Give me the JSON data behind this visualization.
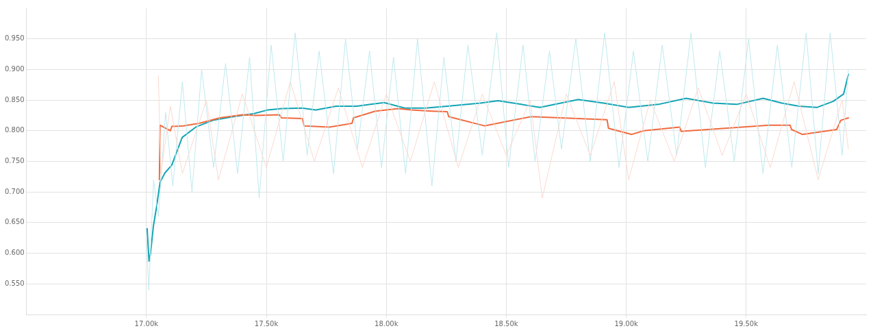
{
  "chart_data": {
    "type": "line",
    "xlim": [
      16500,
      20000
    ],
    "ylim": [
      0.5,
      1.0
    ],
    "xticks": [
      {
        "value": 17000,
        "label": "17.00k"
      },
      {
        "value": 17500,
        "label": "17.50k"
      },
      {
        "value": 18000,
        "label": "18.00k"
      },
      {
        "value": 18500,
        "label": "18.50k"
      },
      {
        "value": 19000,
        "label": "19.00k"
      },
      {
        "value": 19500,
        "label": "19.50k"
      }
    ],
    "yticks": [
      {
        "value": 0.55,
        "label": "0.550"
      },
      {
        "value": 0.6,
        "label": "0.600"
      },
      {
        "value": 0.65,
        "label": "0.650"
      },
      {
        "value": 0.7,
        "label": "0.700"
      },
      {
        "value": 0.75,
        "label": "0.750"
      },
      {
        "value": 0.8,
        "label": "0.800"
      },
      {
        "value": 0.85,
        "label": "0.850"
      },
      {
        "value": 0.9,
        "label": "0.900"
      },
      {
        "value": 0.95,
        "label": "0.950"
      }
    ],
    "grid": true,
    "legend": false,
    "line_style": "solid",
    "series": [
      {
        "color": "#fcd9cf",
        "x": [
          17050,
          17060,
          17100,
          17150,
          17250,
          17300,
          17400,
          17500,
          17600,
          17700,
          17800,
          17900,
          18000,
          18100,
          18200,
          18300,
          18400,
          18500,
          18600,
          18650,
          18750,
          18850,
          18950,
          19010,
          19100,
          19200,
          19300,
          19400,
          19500,
          19600,
          19700,
          19800,
          19900,
          19926
        ],
        "values": [
          0.89,
          0.73,
          0.84,
          0.73,
          0.85,
          0.72,
          0.86,
          0.74,
          0.88,
          0.75,
          0.87,
          0.74,
          0.86,
          0.75,
          0.88,
          0.74,
          0.86,
          0.76,
          0.85,
          0.69,
          0.86,
          0.76,
          0.88,
          0.72,
          0.85,
          0.75,
          0.87,
          0.76,
          0.86,
          0.74,
          0.88,
          0.72,
          0.85,
          0.77
        ]
      },
      {
        "color": "#bfe9ef",
        "x": [
          17000,
          17010,
          17030,
          17050,
          17080,
          17110,
          17150,
          17190,
          17230,
          17280,
          17330,
          17380,
          17430,
          17470,
          17520,
          17570,
          17620,
          17670,
          17720,
          17780,
          17830,
          17880,
          17930,
          17980,
          18030,
          18080,
          18130,
          18190,
          18240,
          18290,
          18340,
          18400,
          18460,
          18510,
          18570,
          18620,
          18680,
          18730,
          18790,
          18850,
          18910,
          18970,
          19030,
          19090,
          19150,
          19210,
          19270,
          19330,
          19390,
          19450,
          19510,
          19570,
          19630,
          19690,
          19750,
          19800,
          19850,
          19900,
          19926
        ],
        "values": [
          0.63,
          0.54,
          0.72,
          0.66,
          0.83,
          0.71,
          0.88,
          0.7,
          0.9,
          0.74,
          0.91,
          0.73,
          0.92,
          0.69,
          0.94,
          0.75,
          0.96,
          0.76,
          0.93,
          0.73,
          0.95,
          0.77,
          0.93,
          0.74,
          0.92,
          0.73,
          0.95,
          0.71,
          0.92,
          0.75,
          0.94,
          0.76,
          0.96,
          0.74,
          0.94,
          0.75,
          0.93,
          0.77,
          0.95,
          0.75,
          0.96,
          0.74,
          0.93,
          0.75,
          0.94,
          0.76,
          0.96,
          0.74,
          0.93,
          0.75,
          0.95,
          0.73,
          0.94,
          0.74,
          0.96,
          0.73,
          0.96,
          0.76,
          0.9
        ]
      },
      {
        "color": "#f06a3e",
        "x": [
          17054,
          17057,
          17100,
          17106,
          17154,
          17220,
          17306,
          17400,
          17454,
          17554,
          17563,
          17649,
          17657,
          17763,
          17857,
          17863,
          17954,
          18049,
          18106,
          18191,
          18254,
          18260,
          18409,
          18603,
          18920,
          18926,
          19023,
          19074,
          19223,
          19229,
          19594,
          19683,
          19689,
          19734,
          19877,
          19894,
          19926
        ],
        "values": [
          0.72,
          0.809,
          0.8,
          0.807,
          0.808,
          0.812,
          0.821,
          0.826,
          0.825,
          0.826,
          0.821,
          0.82,
          0.808,
          0.806,
          0.812,
          0.821,
          0.832,
          0.836,
          0.834,
          0.832,
          0.831,
          0.823,
          0.808,
          0.823,
          0.818,
          0.804,
          0.794,
          0.8,
          0.806,
          0.799,
          0.809,
          0.809,
          0.802,
          0.794,
          0.802,
          0.817,
          0.821
        ]
      },
      {
        "color": "#12a4b4",
        "x": [
          17003,
          17011,
          17017,
          17029,
          17043,
          17057,
          17077,
          17106,
          17149,
          17206,
          17277,
          17363,
          17449,
          17506,
          17563,
          17649,
          17706,
          17791,
          17877,
          17934,
          17991,
          18077,
          18163,
          18254,
          18391,
          18466,
          18563,
          18640,
          18800,
          18906,
          19011,
          19134,
          19249,
          19363,
          19460,
          19571,
          19649,
          19720,
          19794,
          19863,
          19906,
          19926
        ],
        "values": [
          0.64,
          0.587,
          0.599,
          0.644,
          0.677,
          0.716,
          0.731,
          0.744,
          0.789,
          0.806,
          0.817,
          0.823,
          0.828,
          0.834,
          0.836,
          0.837,
          0.834,
          0.84,
          0.84,
          0.843,
          0.846,
          0.837,
          0.837,
          0.84,
          0.845,
          0.849,
          0.843,
          0.838,
          0.851,
          0.845,
          0.838,
          0.843,
          0.853,
          0.845,
          0.843,
          0.853,
          0.845,
          0.84,
          0.838,
          0.848,
          0.86,
          0.892
        ]
      }
    ]
  }
}
